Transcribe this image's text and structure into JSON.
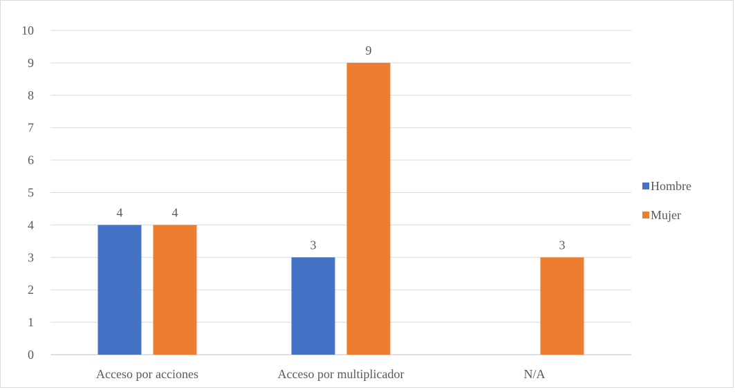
{
  "chart_data": {
    "type": "bar",
    "categories": [
      "Acceso por acciones",
      "Acceso por multiplicador",
      "N/A"
    ],
    "series": [
      {
        "name": "Hombre",
        "color": "#4472C4",
        "values": [
          4,
          3,
          null
        ]
      },
      {
        "name": "Mujer",
        "color": "#ED7D31",
        "values": [
          4,
          9,
          3
        ]
      }
    ],
    "ylim": [
      0,
      10
    ],
    "yticks": [
      0,
      1,
      2,
      3,
      4,
      5,
      6,
      7,
      8,
      9,
      10
    ],
    "grid": true,
    "data_labels": true,
    "legend_position": "right",
    "gridline_color": "#d9d9d9",
    "axis_color": "#bfbfbf",
    "label_color": "#595959"
  }
}
